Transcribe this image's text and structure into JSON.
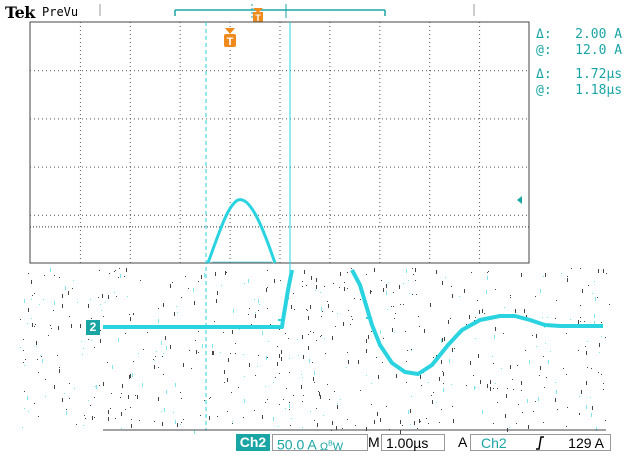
{
  "header": {
    "brand": "Tek",
    "mode": "PreVu"
  },
  "cursors": {
    "amp_delta_label": "Δ:",
    "amp_delta_value": "2.00 A",
    "amp_at_label": "@:",
    "amp_at_value": "12.0 A",
    "time_delta_label": "Δ:",
    "time_delta_value": "1.72µs",
    "time_at_label": "@:",
    "time_at_value": "1.18µs"
  },
  "channel_marker": "2",
  "trigger_marker": "T",
  "footer": {
    "channel": "Ch2",
    "scale": "50.0 A",
    "coupling_icon": "ohm-bw-icon",
    "mode": "M",
    "timebase": "1.00µs",
    "trigger_mode": "A",
    "trigger_channel": "Ch2",
    "trigger_slope_icon": "rising-edge-icon",
    "trigger_level": "129 A"
  },
  "colors": {
    "trace": "#2ad3e0",
    "accent": "#1aa5a5",
    "trigger": "#f08a1c",
    "grid": "#000000"
  }
}
